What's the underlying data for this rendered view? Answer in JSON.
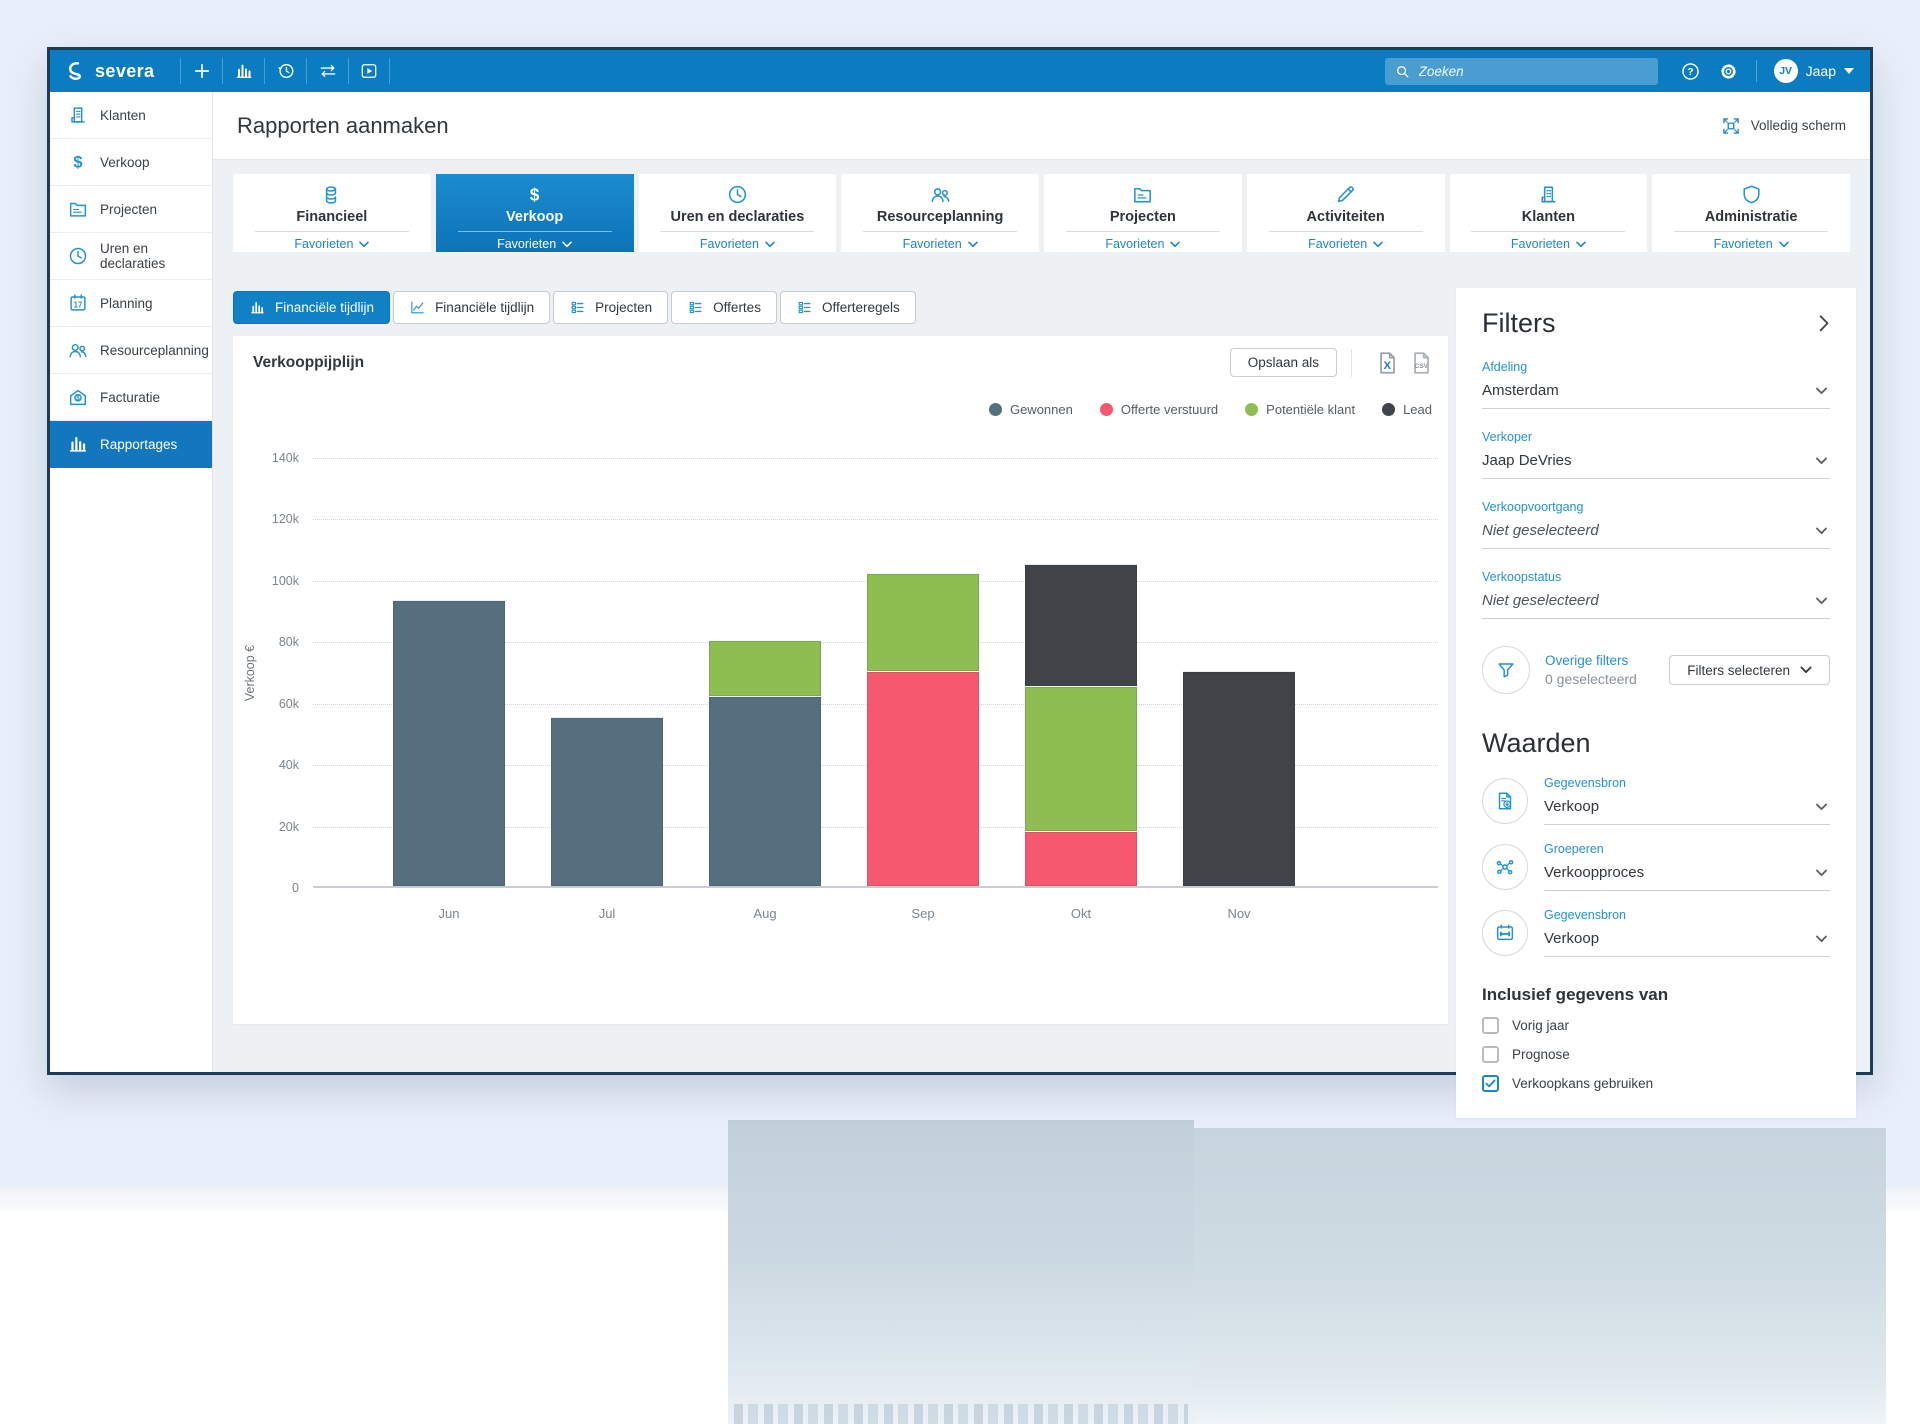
{
  "topbar": {
    "brand": "severa",
    "search_placeholder": "Zoeken",
    "user_name": "Jaap",
    "user_initials": "JV"
  },
  "sidebar": {
    "selected_index": 7,
    "items": [
      {
        "label": "Klanten",
        "icon": "building-icon"
      },
      {
        "label": "Verkoop",
        "icon": "dollar-icon"
      },
      {
        "label": "Projecten",
        "icon": "folder-icon"
      },
      {
        "label": "Uren en declaraties",
        "icon": "clock-icon"
      },
      {
        "label": "Planning",
        "icon": "calendar-17-icon"
      },
      {
        "label": "Resourceplanning",
        "icon": "people-icon"
      },
      {
        "label": "Facturatie",
        "icon": "invoice-icon"
      },
      {
        "label": "Rapportages",
        "icon": "bar-chart-icon"
      }
    ]
  },
  "page": {
    "title": "Rapporten aanmaken",
    "fullscreen_label": "Volledig scherm"
  },
  "category_tabs": {
    "selected_index": 1,
    "favorites_label": "Favorieten",
    "items": [
      {
        "label": "Financieel",
        "icon": "coins-icon"
      },
      {
        "label": "Verkoop",
        "icon": "dollar-icon"
      },
      {
        "label": "Uren en declaraties",
        "icon": "clock-icon"
      },
      {
        "label": "Resourceplanning",
        "icon": "people-icon"
      },
      {
        "label": "Projecten",
        "icon": "folder-icon"
      },
      {
        "label": "Activiteiten",
        "icon": "pencil-icon"
      },
      {
        "label": "Klanten",
        "icon": "building-icon"
      },
      {
        "label": "Administratie",
        "icon": "shield-icon"
      }
    ]
  },
  "report_tabs": {
    "selected_index": 0,
    "items": [
      {
        "label": "Financiële tijdlijn",
        "icon": "bar-chart-icon"
      },
      {
        "label": "Financiële tijdlijn",
        "icon": "line-chart-icon"
      },
      {
        "label": "Projecten",
        "icon": "list-icon"
      },
      {
        "label": "Offertes",
        "icon": "list-icon"
      },
      {
        "label": "Offerteregels",
        "icon": "list-icon"
      }
    ]
  },
  "report": {
    "title": "Verkooppijplijn",
    "save_as_label": "Opslaan als",
    "excel_letter": "X",
    "csv_label": "CSV"
  },
  "chart_data": {
    "type": "bar",
    "stacked": true,
    "title": "Verkooppijplijn",
    "ylabel": "Verkoop €",
    "xlabel": "",
    "ylim": [
      0,
      140000
    ],
    "ytick_step": 20000,
    "ytick_labels": [
      "0",
      "20k",
      "40k",
      "60k",
      "80k",
      "100k",
      "120k",
      "140k"
    ],
    "grid": "horizontal-dotted",
    "legend_position": "top-right",
    "categories": [
      "Jun",
      "Jul",
      "Aug",
      "Sep",
      "Okt",
      "Nov"
    ],
    "series": [
      {
        "name": "Gewonnen",
        "color": "#566f7e",
        "values": [
          93000,
          55000,
          62000,
          0,
          0,
          0
        ]
      },
      {
        "name": "Offerte verstuurd",
        "color": "#f5596f",
        "values": [
          0,
          0,
          0,
          70000,
          18000,
          0
        ]
      },
      {
        "name": "Potentiële klant",
        "color": "#8ebd52",
        "values": [
          0,
          0,
          18000,
          32000,
          47000,
          0
        ]
      },
      {
        "name": "Lead",
        "color": "#404448",
        "values": [
          0,
          0,
          0,
          0,
          40000,
          70000
        ]
      }
    ],
    "totals": [
      93000,
      55000,
      80000,
      102000,
      105000,
      70000
    ]
  },
  "filters_panel": {
    "title": "Filters",
    "groups": [
      {
        "label": "Afdeling",
        "value": "Amsterdam",
        "muted": false
      },
      {
        "label": "Verkoper",
        "value": "Jaap DeVries",
        "muted": false
      },
      {
        "label": "Verkoopvoortgang",
        "value": "Niet geselecteerd",
        "muted": true
      },
      {
        "label": "Verkoopstatus",
        "value": "Niet geselecteerd",
        "muted": true
      }
    ],
    "other_filters": {
      "label": "Overige filters",
      "count_text": "0 geselecteerd",
      "button_label": "Filters selecteren",
      "icon": "funnel-icon"
    },
    "values_title": "Waarden",
    "value_rows": [
      {
        "label": "Gegevensbron",
        "value": "Verkoop",
        "icon": "document-download-icon"
      },
      {
        "label": "Groeperen",
        "value": "Verkoopproces",
        "icon": "network-icon"
      },
      {
        "label": "Gegevensbron",
        "value": "Verkoop",
        "icon": "calendar-range-icon"
      }
    ],
    "include_title": "Inclusief gegevens van",
    "checkboxes": [
      {
        "label": "Vorig jaar",
        "checked": false
      },
      {
        "label": "Prognose",
        "checked": false
      },
      {
        "label": "Verkoopkans gebruiken",
        "checked": true
      }
    ]
  }
}
